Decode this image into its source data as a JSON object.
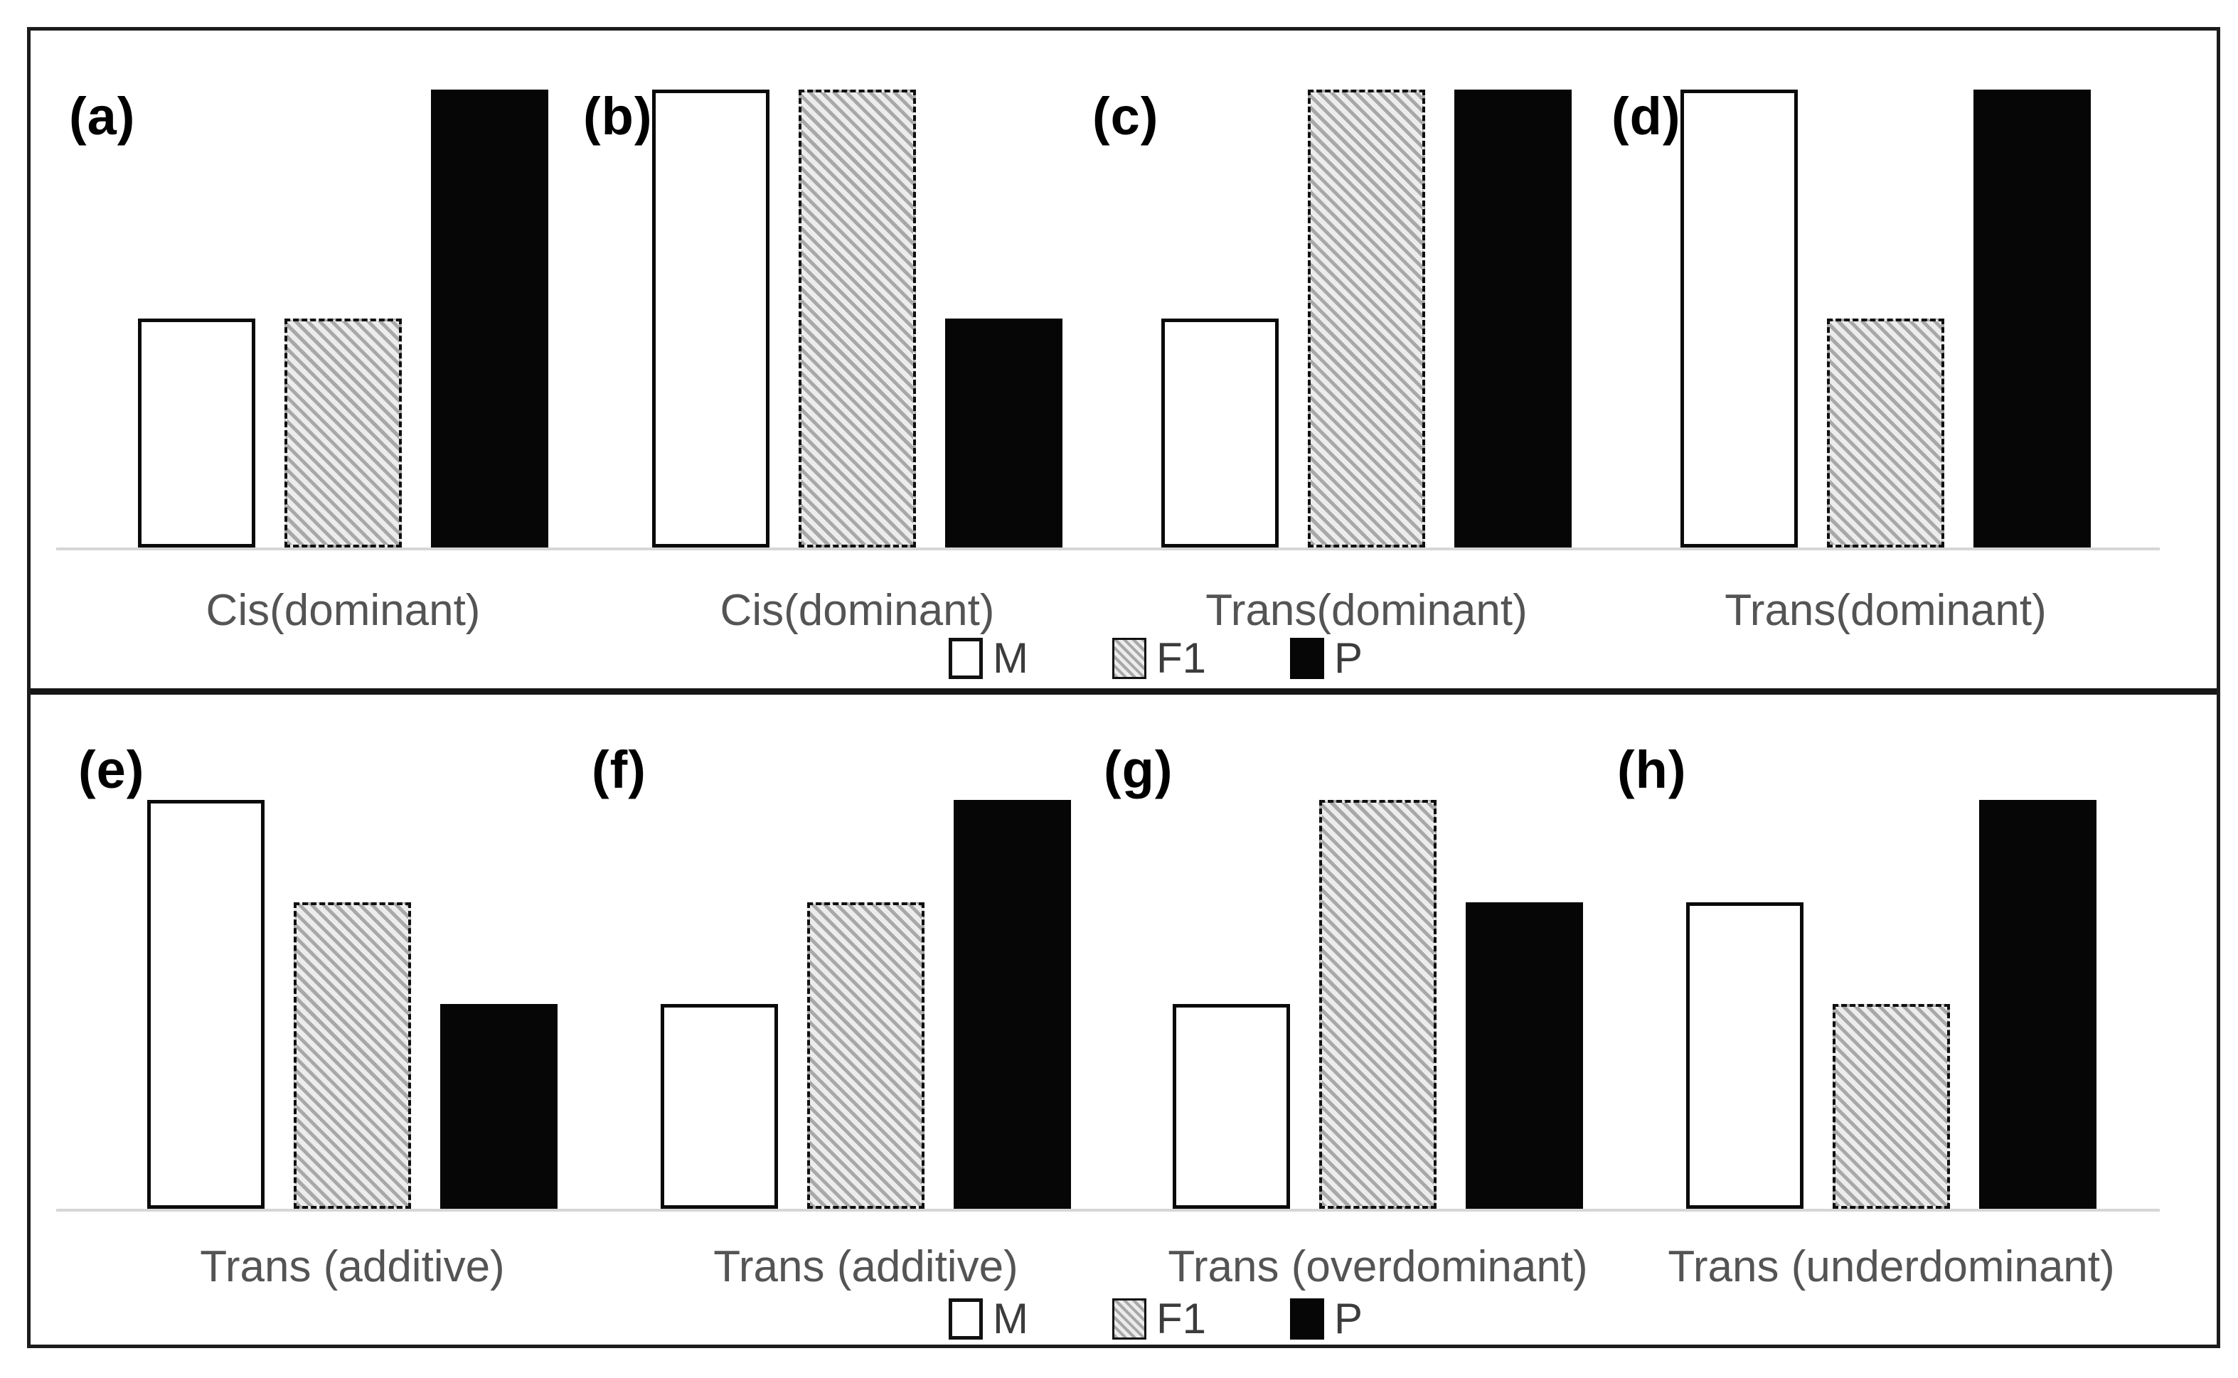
{
  "figure": {
    "kind": "multi-panel bar chart figure",
    "colors": {
      "background": "#ffffff",
      "frame_border": "#1c1c1c",
      "divider": "#161616",
      "axis_line": "#d6d6d6",
      "bar_m_fill": "#ffffff",
      "bar_f1_fill": "#b5b5b5 hatched",
      "bar_p_fill": "#060606",
      "bar_border": "#0a0a0a",
      "category_label_text": "#545454",
      "panel_letter_text": "#000000",
      "legend_text": "#3c3c3c"
    }
  },
  "chart_data": {
    "type": "bar",
    "series_labels": [
      "M",
      "F1",
      "P"
    ],
    "legend_swatches": [
      "white-open-square",
      "gray-hatched-square",
      "black-filled-square"
    ],
    "legend_position": "bottom-center of each boxed row",
    "grid": false,
    "ylim": [
      0,
      1
    ],
    "value_note": "relative expression level; no numeric axis shown; heights normalized so tallest bar in each panel = 1",
    "rows": [
      {
        "panels_in_row": [
          "(a)",
          "(b)",
          "(c)",
          "(d)"
        ]
      },
      {
        "panels_in_row": [
          "(e)",
          "(f)",
          "(g)",
          "(h)"
        ]
      }
    ],
    "panels": [
      {
        "panel_label": "(a)",
        "category": "Cis(dominant)",
        "values": [
          0.5,
          0.5,
          1.0
        ]
      },
      {
        "panel_label": "(b)",
        "category": "Cis(dominant)",
        "values": [
          1.0,
          1.0,
          0.5
        ]
      },
      {
        "panel_label": "(c)",
        "category": "Trans(dominant)",
        "values": [
          0.5,
          1.0,
          1.0
        ]
      },
      {
        "panel_label": "(d)",
        "category": "Trans(dominant)",
        "values": [
          1.0,
          0.5,
          1.0
        ]
      },
      {
        "panel_label": "(e)",
        "category": "Trans (additive)",
        "values": [
          1.0,
          0.75,
          0.5
        ]
      },
      {
        "panel_label": "(f)",
        "category": "Trans (additive)",
        "values": [
          0.5,
          0.75,
          1.0
        ]
      },
      {
        "panel_label": "(g)",
        "category": "Trans (overdominant)",
        "values": [
          0.5,
          1.0,
          0.75
        ]
      },
      {
        "panel_label": "(h)",
        "category": "Trans (underdominant)",
        "values": [
          0.75,
          0.5,
          1.0
        ]
      }
    ]
  }
}
